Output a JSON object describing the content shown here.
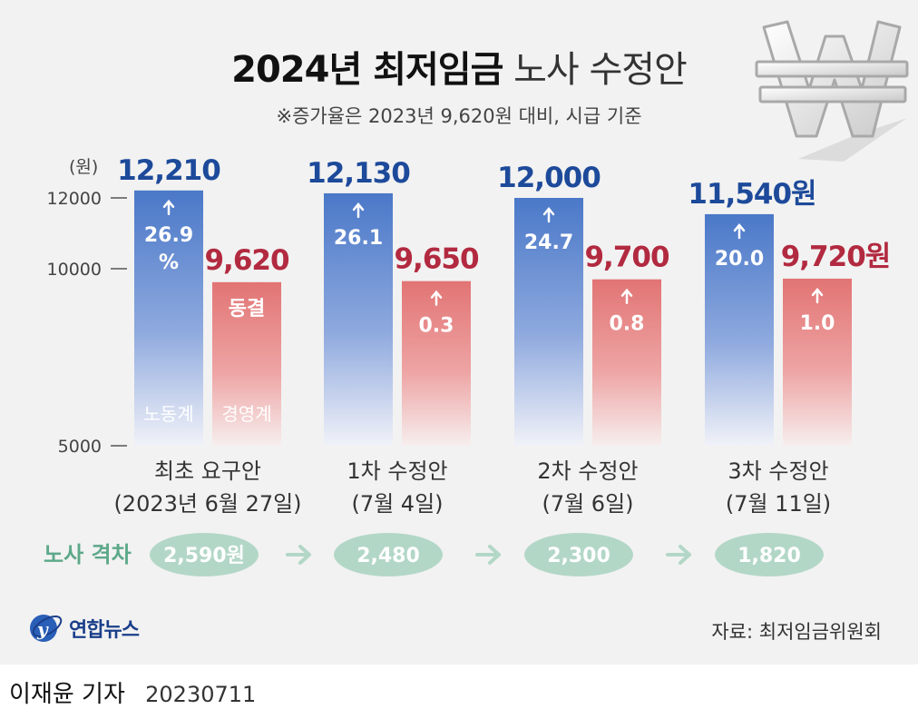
{
  "title_bold": "2024년 최저임금",
  "title_light": "노사 수정안",
  "subtitle": "※증가율은 2023년 9,620원 대비, 시급 기준",
  "unit_label": "(원)",
  "labor_label": "노동계",
  "mgmt_label": "경영계",
  "gap_title": "노사 격차",
  "brand": "연합뉴스",
  "source": "자료: 최저임금위원회",
  "byline": "이재윤 기자",
  "date": "20230711",
  "colors": {
    "labor": "#4a78c8",
    "labor_text": "#1d4a9a",
    "mgmt": "#e27474",
    "mgmt_text": "#b22a40",
    "gap": "#b3d7c7",
    "gap_text": "#5da889"
  },
  "chart_data": {
    "type": "bar",
    "ylim": [
      5000,
      12210
    ],
    "yticks": [
      {
        "value": 12000,
        "label": "12000"
      },
      {
        "value": 10000,
        "label": "10000"
      },
      {
        "value": 5000,
        "label": "5000"
      }
    ],
    "groups": [
      {
        "cat1": "최초 요구안",
        "cat2": "(2023년 6월 27일)",
        "labor": 12210,
        "labor_label": "12,210",
        "labor_rate": [
          "26.9",
          "%"
        ],
        "mgmt": 9620,
        "mgmt_label": "9,620",
        "mgmt_rate": [
          "동결"
        ],
        "gap": "2,590원"
      },
      {
        "cat1": "1차 수정안",
        "cat2": "(7월 4일)",
        "labor": 12130,
        "labor_label": "12,130",
        "labor_rate": [
          "26.1"
        ],
        "mgmt": 9650,
        "mgmt_label": "9,650",
        "mgmt_rate": [
          "0.3"
        ],
        "gap": "2,480"
      },
      {
        "cat1": "2차 수정안",
        "cat2": "(7월 6일)",
        "labor": 12000,
        "labor_label": "12,000",
        "labor_rate": [
          "24.7"
        ],
        "mgmt": 9700,
        "mgmt_label": "9,700",
        "mgmt_rate": [
          "0.8"
        ],
        "gap": "2,300"
      },
      {
        "cat1": "3차 수정안",
        "cat2": "(7월 11일)",
        "labor": 11540,
        "labor_label": "11,540원",
        "labor_rate": [
          "20.0"
        ],
        "mgmt": 9720,
        "mgmt_label": "9,720원",
        "mgmt_rate": [
          "1.0"
        ],
        "gap": "1,820"
      }
    ]
  }
}
